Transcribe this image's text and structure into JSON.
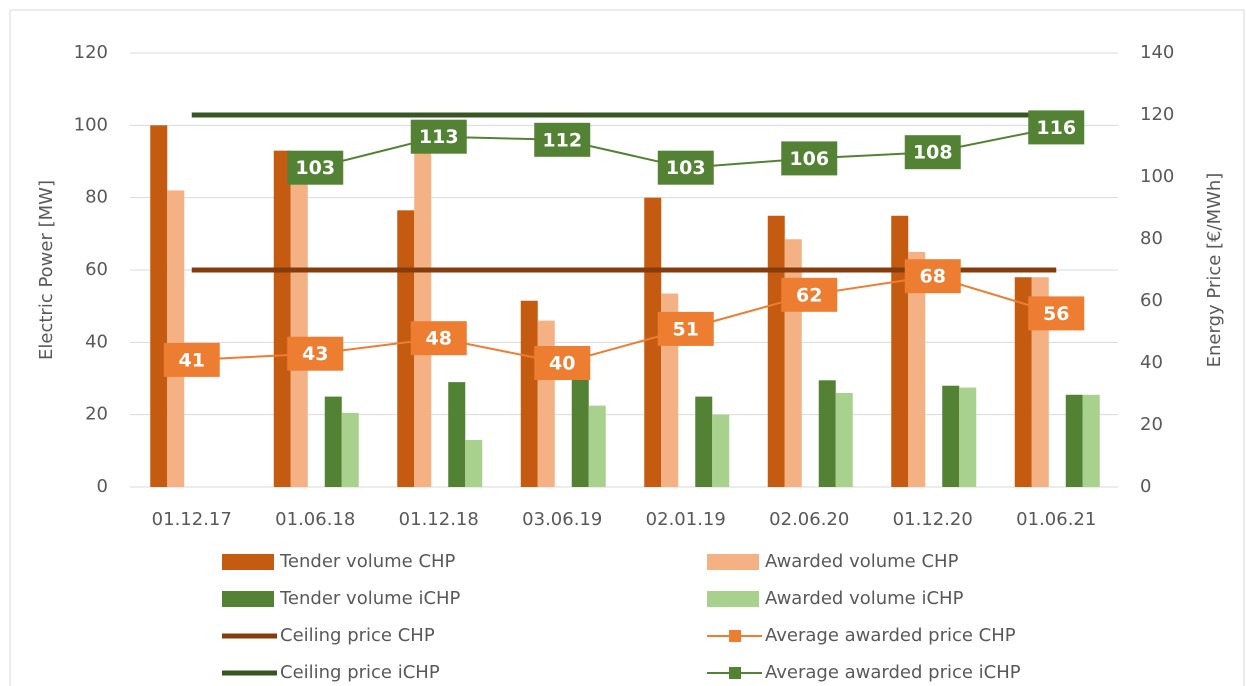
{
  "chart_data": {
    "type": "bar",
    "categories": [
      "01.12.17",
      "01.06.18",
      "01.12.18",
      "03.06.19",
      "02.01.19",
      "02.06.20",
      "01.12.20",
      "01.06.21"
    ],
    "y_label": "Electric Power [MW]",
    "y2_label": "Energy Price [€/MWh]",
    "ylim": [
      0,
      120
    ],
    "yticks": [
      0,
      20,
      40,
      60,
      80,
      100,
      120
    ],
    "y2lim": [
      0,
      140
    ],
    "y2ticks": [
      0,
      20,
      40,
      60,
      80,
      100,
      120,
      140
    ],
    "grid": true,
    "series": [
      {
        "name": "Tender volume CHP",
        "type": "bar",
        "color": "#c55a11",
        "values": [
          100,
          93,
          76.5,
          51.5,
          80,
          75,
          75,
          58
        ]
      },
      {
        "name": "Awarded volume CHP",
        "type": "bar",
        "color": "#f4b183",
        "values": [
          82,
          85,
          93,
          46,
          53.5,
          68.5,
          65,
          58
        ]
      },
      {
        "name": "Tender volume iCHP",
        "type": "bar",
        "color": "#548235",
        "values": [
          null,
          25,
          29,
          30.5,
          25,
          29.5,
          28,
          25.5
        ]
      },
      {
        "name": "Awarded volume iCHP",
        "type": "bar",
        "color": "#a9d18e",
        "values": [
          null,
          20.5,
          13,
          22.5,
          20,
          26,
          27.5,
          25.5
        ]
      },
      {
        "name": "Ceiling price CHP",
        "type": "line",
        "axis": "y2",
        "color": "#843c0c",
        "width": 5,
        "values": [
          70,
          70,
          70,
          70,
          70,
          70,
          70,
          70
        ]
      },
      {
        "name": "Average awarded price CHP",
        "type": "line",
        "axis": "y2",
        "color": "#ed7d31",
        "width": 2,
        "labels": true,
        "values": [
          41,
          43,
          48,
          40,
          51,
          62,
          68,
          56
        ]
      },
      {
        "name": "Ceiling price iCHP",
        "type": "line",
        "axis": "y2",
        "color": "#375623",
        "width": 5,
        "values": [
          120,
          120,
          120,
          120,
          120,
          120,
          120,
          120
        ]
      },
      {
        "name": "Average awarded price iCHP",
        "type": "line",
        "axis": "y2",
        "color": "#548235",
        "width": 2,
        "labels": true,
        "values": [
          null,
          103,
          113,
          112,
          103,
          106,
          108,
          116
        ]
      }
    ]
  }
}
